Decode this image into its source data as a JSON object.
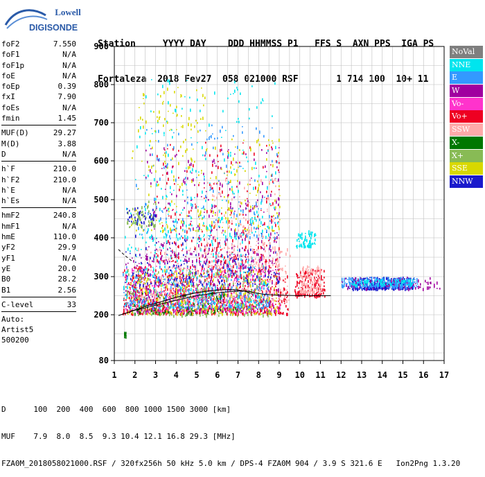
{
  "app": {
    "brand_top": "Lowell",
    "brand_bottom": "DIGISONDE",
    "header_line1": "Station     YYYY DAY    DDD HHMMSS P1   FFS S  AXN PPS  IGA PS",
    "header_line2": "Fortaleza  2018 Fev27  058 021000 RSF       1 714 100  10+ 11"
  },
  "params": [
    {
      "label": "foF2",
      "value": "7.550"
    },
    {
      "label": "foF1",
      "value": "N/A"
    },
    {
      "label": "foF1p",
      "value": "N/A"
    },
    {
      "label": "foE",
      "value": "N/A"
    },
    {
      "label": "foEp",
      "value": "0.39"
    },
    {
      "label": "fxI",
      "value": "7.90"
    },
    {
      "label": "foEs",
      "value": "N/A"
    },
    {
      "label": "fmin",
      "value": "1.45"
    },
    {
      "sep": true
    },
    {
      "label": "MUF(D)",
      "value": "29.27"
    },
    {
      "label": "M(D)",
      "value": "3.88"
    },
    {
      "label": "D",
      "value": "N/A"
    },
    {
      "sep": true
    },
    {
      "label": "h`F",
      "value": "210.0"
    },
    {
      "label": "h`F2",
      "value": "210.0"
    },
    {
      "label": "h`E",
      "value": "N/A"
    },
    {
      "label": "h`Es",
      "value": "N/A"
    },
    {
      "sep": true
    },
    {
      "label": "hmF2",
      "value": "240.8"
    },
    {
      "label": "hmF1",
      "value": "N/A"
    },
    {
      "label": "hmE",
      "value": "110.0"
    },
    {
      "label": "yF2",
      "value": "29.9"
    },
    {
      "label": "yF1",
      "value": "N/A"
    },
    {
      "label": "yE",
      "value": "20.0"
    },
    {
      "label": "B0",
      "value": "28.2"
    },
    {
      "label": "B1",
      "value": "2.56"
    },
    {
      "sep": true
    },
    {
      "label": "C-level",
      "value": "33"
    },
    {
      "sep": true
    }
  ],
  "auto_lines": [
    "Auto:",
    "Artist5",
    "500200"
  ],
  "legend": [
    {
      "name": "NoVal",
      "color": "#7f7f7f"
    },
    {
      "name": "NNE",
      "color": "#00e5ee"
    },
    {
      "name": "E",
      "color": "#3399ff"
    },
    {
      "name": "W",
      "color": "#a0009f"
    },
    {
      "name": "Vo-",
      "color": "#ff33cc"
    },
    {
      "name": "Vo+",
      "color": "#ee0022"
    },
    {
      "name": "SSW",
      "color": "#ffaaaa"
    },
    {
      "name": "X-",
      "color": "#007700"
    },
    {
      "name": "X+",
      "color": "#88bb55"
    },
    {
      "name": "SSE",
      "color": "#d8d800"
    },
    {
      "name": "NNW",
      "color": "#1a1acc"
    }
  ],
  "footer": {
    "line1": "D      100  200  400  600  800 1000 1500 3000 [km]",
    "line2": "MUF    7.9  8.0  8.5  9.3 10.4 12.1 16.8 29.3 [MHz]",
    "line3": "FZA0M_2018058021000.RSF / 320fx256h 50 kHz 5.0 km / DPS-4 FZA0M 904 / 3.9 S 321.6 E   Ion2Png 1.3.20"
  },
  "chart_data": {
    "type": "scatter",
    "xlim": [
      1,
      17
    ],
    "ylim": [
      80,
      900
    ],
    "x_ticks": [
      "1",
      "2",
      "3",
      "4",
      "5",
      "6",
      "7",
      "8",
      "9",
      "10",
      "11",
      "12",
      "13",
      "14",
      "15",
      "16",
      "17"
    ],
    "y_ticks": [
      "80",
      "200",
      "300",
      "400",
      "500",
      "600",
      "700",
      "800",
      "900"
    ],
    "grid": true,
    "legend_position": "right",
    "clusters": [
      {
        "series": "Vo+",
        "x": [
          1.4,
          9.4
        ],
        "y": [
          205,
          330
        ],
        "n": 900
      },
      {
        "series": "Vo+",
        "x": [
          9.7,
          11.2
        ],
        "y": [
          250,
          320
        ],
        "n": 160
      },
      {
        "series": "W",
        "x": [
          1.5,
          9.0
        ],
        "y": [
          210,
          360
        ],
        "n": 450
      },
      {
        "series": "Vo-",
        "x": [
          1.5,
          9.0
        ],
        "y": [
          210,
          330
        ],
        "n": 260
      },
      {
        "series": "E",
        "x": [
          1.4,
          8.5
        ],
        "y": [
          220,
          330
        ],
        "n": 380
      },
      {
        "series": "NNE",
        "x": [
          1.4,
          8.5
        ],
        "y": [
          220,
          480
        ],
        "n": 280
      },
      {
        "series": "SSW",
        "x": [
          2.0,
          9.5
        ],
        "y": [
          240,
          380
        ],
        "n": 300
      },
      {
        "series": "SSW",
        "x": [
          10.0,
          11.0
        ],
        "y": [
          260,
          330
        ],
        "n": 120
      },
      {
        "series": "SSE",
        "x": [
          1.6,
          9.0
        ],
        "y": [
          205,
          320
        ],
        "n": 220
      },
      {
        "series": "X+",
        "x": [
          1.6,
          8.5
        ],
        "y": [
          200,
          320
        ],
        "n": 220
      },
      {
        "series": "X-",
        "x": [
          1.8,
          7.0
        ],
        "y": [
          205,
          260
        ],
        "n": 70
      },
      {
        "series": "NNW",
        "x": [
          12.5,
          15.5
        ],
        "y": [
          270,
          300
        ],
        "n": 380
      },
      {
        "series": "E",
        "x": [
          12.0,
          15.7
        ],
        "y": [
          275,
          300
        ],
        "n": 260
      },
      {
        "series": "NNE",
        "x": [
          12.5,
          15.5
        ],
        "y": [
          280,
          295
        ],
        "n": 90
      },
      {
        "series": "W",
        "x": [
          12.0,
          16.8
        ],
        "y": [
          270,
          300
        ],
        "n": 70
      },
      {
        "series": "NNW",
        "x": [
          1.5,
          9.0
        ],
        "y": [
          280,
          420
        ],
        "n": 160
      },
      {
        "series": "NNE",
        "x": [
          9.8,
          10.8
        ],
        "y": [
          380,
          420
        ],
        "n": 80
      },
      {
        "series": "W",
        "x": [
          2.5,
          9.0
        ],
        "y": [
          340,
          640
        ],
        "n": 300
      },
      {
        "series": "Vo+",
        "x": [
          3.0,
          9.0
        ],
        "y": [
          340,
          650
        ],
        "n": 220
      },
      {
        "series": "SSE",
        "x": [
          1.8,
          9.0
        ],
        "y": [
          420,
          660
        ],
        "n": 220
      },
      {
        "series": "E",
        "x": [
          2.0,
          9.0
        ],
        "y": [
          400,
          700
        ],
        "n": 160
      },
      {
        "series": "NNE",
        "x": [
          2.0,
          9.0
        ],
        "y": [
          400,
          820
        ],
        "n": 200
      },
      {
        "series": "SSW",
        "x": [
          5.5,
          9.0
        ],
        "y": [
          330,
          560
        ],
        "n": 150
      },
      {
        "series": "X+",
        "x": [
          1.6,
          3.0
        ],
        "y": [
          430,
          500
        ],
        "n": 60
      },
      {
        "series": "NNW",
        "x": [
          1.6,
          3.0
        ],
        "y": [
          440,
          480
        ],
        "n": 40
      },
      {
        "series": "SSE",
        "x": [
          2.0,
          5.5
        ],
        "y": [
          680,
          800
        ],
        "n": 60
      },
      {
        "series": "X-",
        "x": [
          1.45,
          1.55
        ],
        "y": [
          145,
          156
        ],
        "n": 16
      }
    ],
    "trace": {
      "x": [
        1.2,
        1.6,
        2.0,
        2.5,
        3.0,
        3.5,
        4.0,
        4.5,
        5.0,
        5.5,
        6.0,
        6.5,
        7.0,
        7.3,
        7.55
      ],
      "y": [
        198,
        205,
        212,
        222,
        230,
        238,
        246,
        252,
        258,
        262,
        265,
        266,
        265,
        262,
        258
      ]
    },
    "trace2": {
      "x": [
        1.8,
        2.2,
        3.0,
        4.0,
        5.0,
        6.0,
        7.0,
        7.5,
        7.8,
        8.2,
        8.7,
        9.2,
        10.0,
        11.5
      ],
      "y": [
        210,
        214,
        225,
        238,
        250,
        258,
        262,
        262,
        258,
        254,
        252,
        251,
        250,
        250
      ]
    },
    "trace_dashed": {
      "x": [
        1.2,
        1.5,
        1.9
      ],
      "y": [
        370,
        355,
        338
      ]
    }
  }
}
